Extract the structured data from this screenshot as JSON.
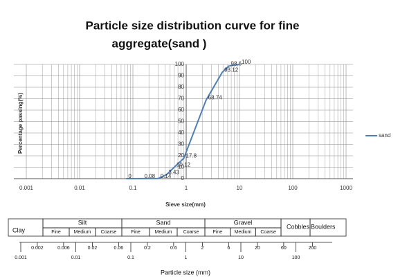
{
  "chart_data": {
    "type": "line",
    "title": "Particle size distribution curve for fine",
    "subtitle": "aggregate(sand )",
    "x_label": "Sieve size(mm)",
    "y_label": "Percentage passing(%)",
    "log_x": true,
    "grid": true,
    "legend": "right",
    "x": [
      0.075,
      0.15,
      0.3,
      0.425,
      0.6,
      0.9,
      2.36,
      4.75,
      6.3,
      10
    ],
    "series": [
      {
        "name": "sand",
        "color": "#4a7ebb",
        "values": [
          0,
          0.08,
          0.14,
          3.43,
          10.12,
          17.8,
          68.74,
          93.12,
          98.6,
          100
        ]
      }
    ],
    "xlim": [
      0.001,
      1000
    ],
    "xticks": [
      0.001,
      0.01,
      0.1,
      1,
      10,
      100,
      1000
    ],
    "ylim": [
      0,
      100
    ],
    "yticks": [
      0,
      10,
      20,
      30,
      40,
      50,
      60,
      70,
      80,
      90,
      100
    ]
  },
  "classification": {
    "classes": [
      "Clay",
      "Silt",
      "Sand",
      "Gravel",
      "Cobbles",
      "Boulders"
    ],
    "sub": [
      "Fine",
      "Medium",
      "Coarse"
    ],
    "upper_ticks": [
      0.002,
      0.006,
      0.02,
      0.06,
      0.2,
      0.6,
      2,
      6,
      20,
      60,
      200
    ],
    "lower_ticks": [
      0.001,
      0.01,
      0.1,
      1,
      10,
      100
    ],
    "axis_label": "Particle size (mm)"
  }
}
